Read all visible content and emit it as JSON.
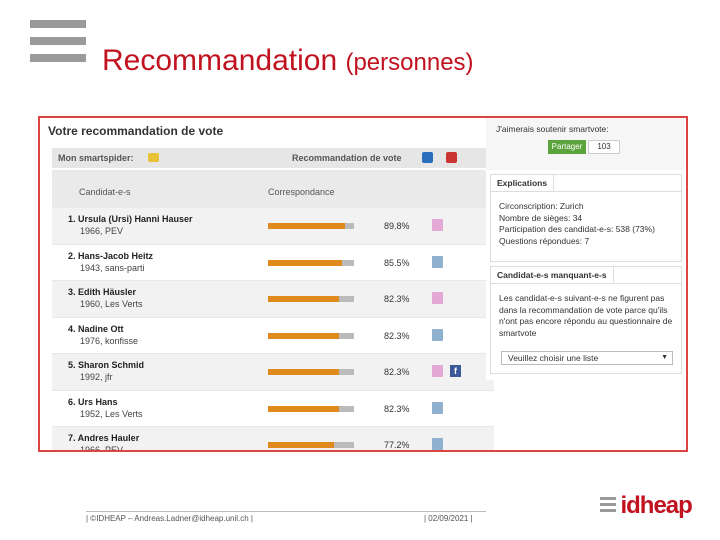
{
  "slide": {
    "title": "Recommandation",
    "subtitle": "(personnes)"
  },
  "vote": {
    "title": "Votre recommandation de vote",
    "smartspider_label": "Mon smartspider:",
    "recommendation_label": "Recommandation de vote",
    "columns": [
      "Candidat-e-s",
      "Correspondance"
    ],
    "rows": [
      {
        "name": "1. Ursula (Ursi) Hanni Hauser",
        "meta": "1966, PEV",
        "pct_label": "89.8%",
        "pct": 89.8,
        "gender": "f",
        "facebook": false
      },
      {
        "name": "2. Hans-Jacob Heitz",
        "meta": "1943, sans-parti",
        "pct_label": "85.5%",
        "pct": 85.5,
        "gender": "m",
        "facebook": false
      },
      {
        "name": "3. Edith Häusler",
        "meta": "1960, Les Verts",
        "pct_label": "82.3%",
        "pct": 82.3,
        "gender": "f",
        "facebook": false
      },
      {
        "name": "4. Nadine Ott",
        "meta": "1976, konfisse",
        "pct_label": "82.3%",
        "pct": 82.3,
        "gender": "m",
        "facebook": false
      },
      {
        "name": "5. Sharon Schmid",
        "meta": "1992, jfr",
        "pct_label": "82.3%",
        "pct": 82.3,
        "gender": "f",
        "facebook": true
      },
      {
        "name": "6. Urs Hans",
        "meta": "1952, Les Verts",
        "pct_label": "82.3%",
        "pct": 82.3,
        "gender": "m",
        "facebook": false
      },
      {
        "name": "7. Andres Hauler",
        "meta": "1966, PEV",
        "pct_label": "77.2%",
        "pct": 77.2,
        "gender": "m",
        "facebook": false
      }
    ]
  },
  "sidebar": {
    "support_label": "J'aimerais soutenir smartvote:",
    "button_label": "Partager",
    "count": "103",
    "explications": {
      "tab": "Explications",
      "lines": [
        "Circonscription: Zurich",
        "Nombre de sièges: 34",
        "Participation des candidat-e-s: 538 (73%)",
        "Questions répondues: 7"
      ]
    },
    "manquants": {
      "tab": "Candidat-e-s manquant-e-s",
      "text": "Les candidat-e-s suivant-e-s ne figurent pas dans la recommandation de vote parce qu'ils n'ont pas encore répondu au questionnaire de smartvote",
      "select_value": "Veuillez choisir une liste"
    }
  },
  "footer": {
    "left": "| ©IDHEAP – Andreas.Ladner@idheap.unil.ch |",
    "date": "| 02/09/2021 |",
    "brand": "idheap"
  }
}
